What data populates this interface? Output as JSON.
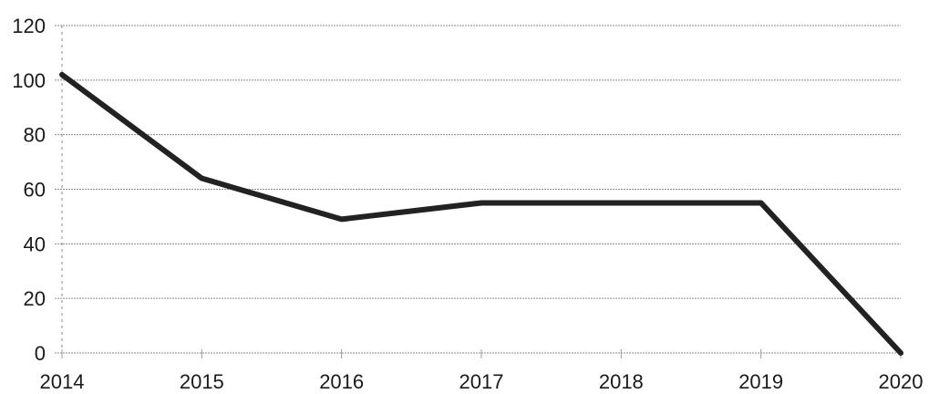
{
  "chart_data": {
    "type": "line",
    "title": "",
    "xlabel": "",
    "ylabel": "",
    "categories": [
      "2014",
      "2015",
      "2016",
      "2017",
      "2018",
      "2019",
      "2020"
    ],
    "series": [
      {
        "values": [
          102,
          64,
          49,
          55,
          55,
          55,
          0
        ]
      }
    ],
    "ylim": [
      0,
      120
    ],
    "yticks": [
      "0",
      "20",
      "40",
      "60",
      "80",
      "100",
      "120"
    ],
    "grid": true,
    "legend": "none",
    "colors": {
      "line": "#222222",
      "grid": "#8a8a8a"
    }
  }
}
